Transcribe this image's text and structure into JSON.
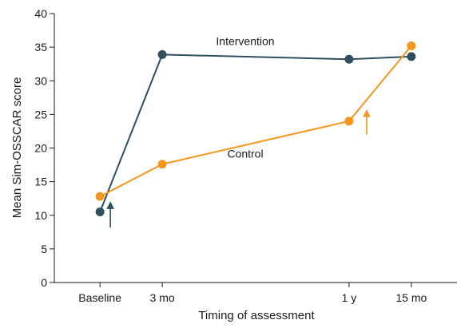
{
  "chart_data": {
    "type": "line",
    "xlabel": "Timing of assessment",
    "ylabel": "Mean Sim-OSSCAR score",
    "ylim": [
      0,
      40
    ],
    "yticks": [
      0,
      5,
      10,
      15,
      20,
      25,
      30,
      35,
      40
    ],
    "x_ticks": [
      {
        "label": "Baseline",
        "month": 0
      },
      {
        "label": "3 mo",
        "month": 3
      },
      {
        "label": "1 y",
        "month": 12
      },
      {
        "label": "15 mo",
        "month": 15
      }
    ],
    "xlim": [
      -2.2,
      17.2
    ],
    "grid": false,
    "series": [
      {
        "name": "Intervention",
        "color": "#2d4f5e",
        "points": [
          {
            "month": 0,
            "value": 10.5
          },
          {
            "month": 3,
            "value": 33.9
          },
          {
            "month": 12,
            "value": 33.2
          },
          {
            "month": 15,
            "value": 33.6
          }
        ],
        "label_anchor": {
          "month": 7.0,
          "value": 35.3
        },
        "arrow_month": 0.5
      },
      {
        "name": "Control",
        "color": "#f5961e",
        "points": [
          {
            "month": 0,
            "value": 12.8
          },
          {
            "month": 3,
            "value": 17.6
          },
          {
            "month": 12,
            "value": 24.0
          },
          {
            "month": 15,
            "value": 35.2
          }
        ],
        "label_anchor": {
          "month": 7.0,
          "value": 18.6
        },
        "arrow_month": 12.85
      }
    ]
  }
}
